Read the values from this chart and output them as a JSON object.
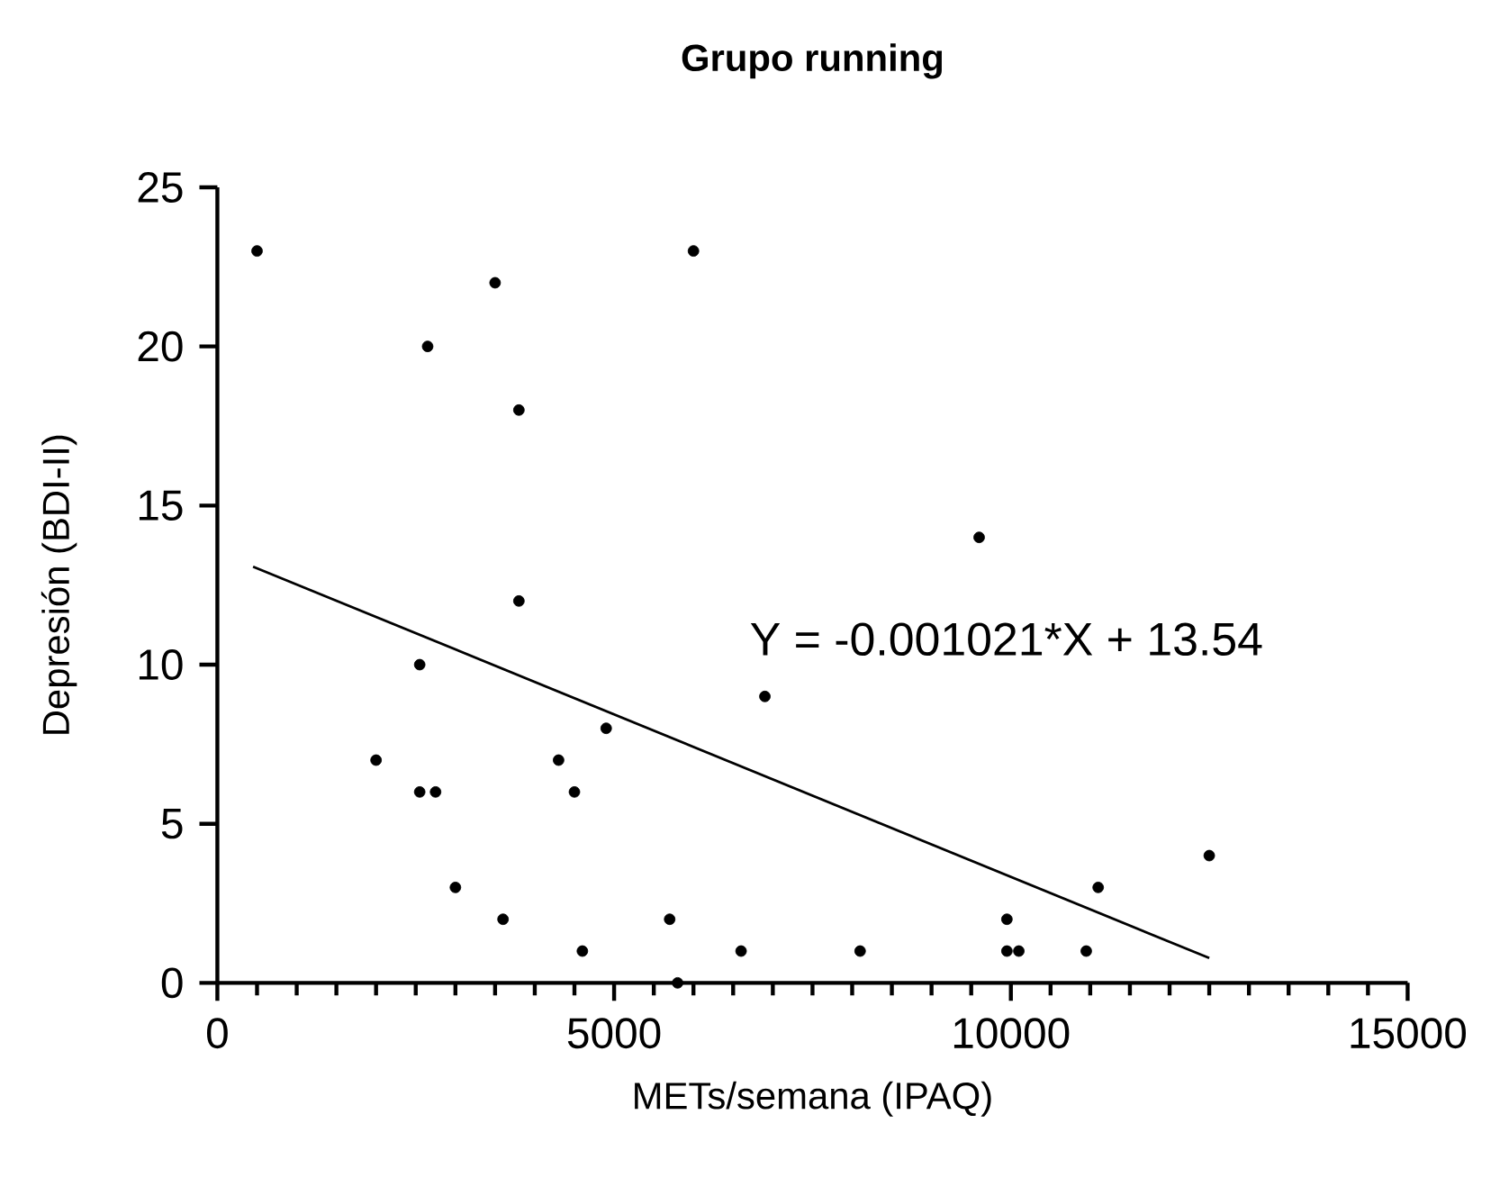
{
  "chart_data": {
    "type": "scatter",
    "title": "Grupo running",
    "xlabel": "METs/semana (IPAQ)",
    "ylabel": "Depresión  (BDI-II)",
    "xlim": [
      0,
      15000
    ],
    "xticks": [
      0,
      5000,
      10000,
      15000
    ],
    "ylim": [
      0,
      25
    ],
    "yticks": [
      0,
      5,
      10,
      15,
      20,
      25
    ],
    "grid": false,
    "annotations": [
      "Y = -0.001021*X + 13.54"
    ],
    "series": [
      {
        "color": "#000000",
        "marker": "circle",
        "x": [
          500,
          6000,
          3500,
          2650,
          3800,
          3800,
          2550,
          9600,
          6900,
          4900,
          2000,
          4300,
          2550,
          2750,
          4500,
          3000,
          3600,
          5700,
          4600,
          6600,
          5800,
          8100,
          9950,
          9950,
          10100,
          10950,
          11100,
          12500
        ],
        "values": [
          23,
          23,
          22,
          20,
          18,
          12,
          10,
          14,
          9,
          8,
          7,
          7,
          6,
          6,
          6,
          3,
          2,
          2,
          1,
          1,
          0,
          1,
          2,
          1,
          1,
          1,
          3,
          4
        ]
      },
      {
        "type": "line",
        "color": "#000000",
        "marker": "none",
        "line_style": "solid",
        "x": [
          450,
          12500
        ],
        "values": [
          13.08,
          0.78
        ]
      }
    ]
  }
}
